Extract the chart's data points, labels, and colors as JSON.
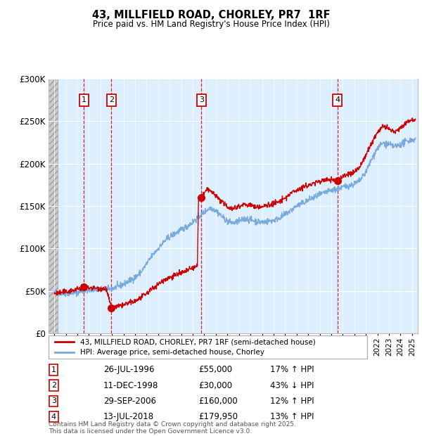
{
  "title_line1": "43, MILLFIELD ROAD, CHORLEY, PR7  1RF",
  "title_line2": "Price paid vs. HM Land Registry's House Price Index (HPI)",
  "ylim": [
    0,
    300000
  ],
  "yticks": [
    0,
    50000,
    100000,
    150000,
    200000,
    250000,
    300000
  ],
  "ytick_labels": [
    "£0",
    "£50K",
    "£100K",
    "£150K",
    "£200K",
    "£250K",
    "£300K"
  ],
  "xstart_year": 1994,
  "xend_year": 2025,
  "hpi_color": "#7aaadd",
  "price_color": "#cc0000",
  "background_chart": "#ddeeff",
  "sales": [
    {
      "label": "1",
      "date_year": 1996.57,
      "price": 55000,
      "hpi_pct": "17% ↑ HPI",
      "date_str": "26-JUL-1996",
      "price_str": "£55,000"
    },
    {
      "label": "2",
      "date_year": 1998.94,
      "price": 30000,
      "hpi_pct": "43% ↓ HPI",
      "date_str": "11-DEC-1998",
      "price_str": "£30,000"
    },
    {
      "label": "3",
      "date_year": 2006.75,
      "price": 160000,
      "hpi_pct": "12% ↑ HPI",
      "date_str": "29-SEP-2006",
      "price_str": "£160,000"
    },
    {
      "label": "4",
      "date_year": 2018.53,
      "price": 179950,
      "hpi_pct": "13% ↑ HPI",
      "date_str": "13-JUL-2018",
      "price_str": "£179,950"
    }
  ],
  "legend_label_price": "43, MILLFIELD ROAD, CHORLEY, PR7 1RF (semi-detached house)",
  "legend_label_hpi": "HPI: Average price, semi-detached house, Chorley",
  "footnote": "Contains HM Land Registry data © Crown copyright and database right 2025.\nThis data is licensed under the Open Government Licence v3.0."
}
